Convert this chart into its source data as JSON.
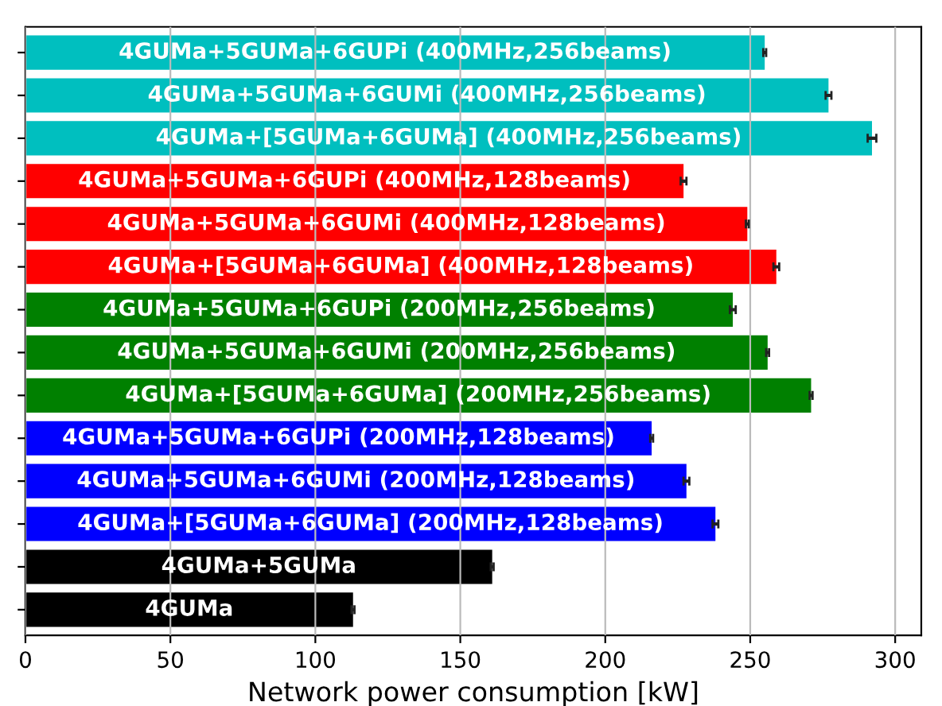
{
  "chart_data": {
    "type": "bar",
    "orientation": "horizontal",
    "xlabel": "Network power consumption [kW]",
    "categories": [
      "4GUMa+5GUMa+6GUPi (400MHz,256beams)",
      "4GUMa+5GUMa+6GUMi (400MHz,256beams)",
      "4GUMa+[5GUMa+6GUMa] (400MHz,256beams)",
      "4GUMa+5GUMa+6GUPi (400MHz,128beams)",
      "4GUMa+5GUMa+6GUMi (400MHz,128beams)",
      "4GUMa+[5GUMa+6GUMa] (400MHz,128beams)",
      "4GUMa+5GUMa+6GUPi (200MHz,256beams)",
      "4GUMa+5GUMa+6GUMi (200MHz,256beams)",
      "4GUMa+[5GUMa+6GUMa] (200MHz,256beams)",
      "4GUMa+5GUMa+6GUPi (200MHz,128beams)",
      "4GUMa+5GUMa+6GUMi (200MHz,128beams)",
      "4GUMa+[5GUMa+6GUMa] (200MHz,128beams)",
      "4GUMa+5GUMa",
      "4GUMa"
    ],
    "values": [
      255,
      277,
      292,
      227,
      249,
      259,
      244,
      256,
      271,
      216,
      228,
      238,
      161,
      113
    ],
    "errors": [
      0.5,
      1,
      1.5,
      1,
      0.5,
      1,
      1,
      0.5,
      0.5,
      0.5,
      1,
      1,
      0.5,
      0.5
    ],
    "colors": [
      "#00bfbf",
      "#00bfbf",
      "#00bfbf",
      "#ff0000",
      "#ff0000",
      "#ff0000",
      "#008000",
      "#008000",
      "#008000",
      "#0000ff",
      "#0000ff",
      "#0000ff",
      "#000000",
      "#000000"
    ],
    "xlim": [
      0,
      309
    ],
    "xticks": [
      0,
      50,
      100,
      150,
      200,
      250,
      300
    ],
    "grid": "x",
    "tick_labels": "x"
  }
}
